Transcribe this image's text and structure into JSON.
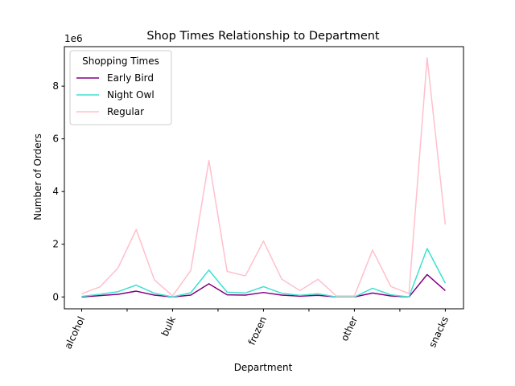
{
  "chart_data": {
    "type": "line",
    "title": "Shop Times Relationship to Department",
    "xlabel": "Department",
    "ylabel": "Number of Orders",
    "y_offset_label": "1e6",
    "y_multiplier": 1000000,
    "ylim": [
      -0.45,
      9.5
    ],
    "yticks": [
      0,
      2,
      4,
      6,
      8
    ],
    "x": [
      0,
      1,
      2,
      3,
      4,
      5,
      6,
      7,
      8,
      9,
      10,
      11,
      12,
      13,
      14,
      15,
      16,
      17,
      18,
      19,
      20
    ],
    "xlim": [
      -0.95,
      21
    ],
    "xticks": [
      0,
      5,
      10,
      15,
      20
    ],
    "xticklabels": [
      "alcohol",
      "bulk",
      "frozen",
      "other",
      "snacks"
    ],
    "legend_title": "Shopping Times",
    "legend_loc": "upper-left",
    "series": [
      {
        "name": "Early Bird",
        "color": "#800080",
        "values": [
          0.0,
          0.05,
          0.1,
          0.22,
          0.07,
          0.0,
          0.07,
          0.5,
          0.08,
          0.07,
          0.17,
          0.07,
          0.03,
          0.06,
          0.0,
          0.0,
          0.15,
          0.04,
          0.0,
          0.85,
          0.24
        ]
      },
      {
        "name": "Night Owl",
        "color": "#40e0d0",
        "values": [
          0.02,
          0.1,
          0.2,
          0.45,
          0.14,
          0.0,
          0.16,
          1.02,
          0.18,
          0.15,
          0.39,
          0.14,
          0.06,
          0.12,
          0.0,
          0.0,
          0.33,
          0.08,
          0.0,
          1.84,
          0.52
        ]
      },
      {
        "name": "Regular",
        "color": "#ffc0cb",
        "values": [
          0.12,
          0.38,
          1.1,
          2.56,
          0.65,
          0.04,
          1.0,
          5.18,
          0.97,
          0.8,
          2.12,
          0.68,
          0.24,
          0.67,
          0.04,
          0.04,
          1.78,
          0.4,
          0.13,
          9.08,
          2.75
        ]
      }
    ]
  }
}
